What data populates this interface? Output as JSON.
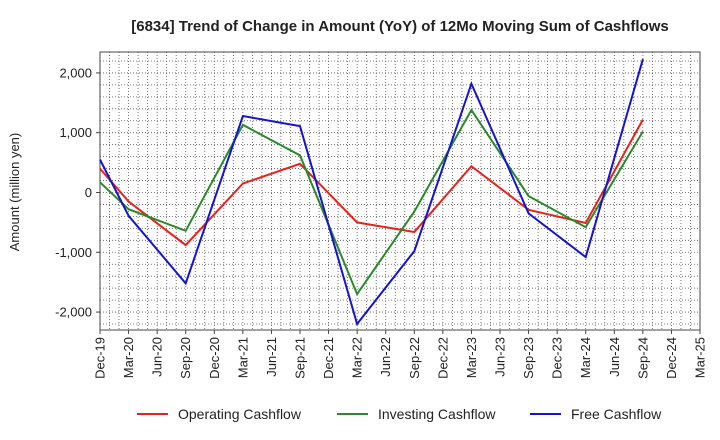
{
  "chart_data": {
    "type": "line",
    "title": "[6834]  Trend of Change in Amount (YoY) of 12Mo Moving Sum of Cashflows",
    "xlabel": "",
    "ylabel": "Amount (million yen)",
    "ylim": [
      -2300,
      2350
    ],
    "yticks": [
      2000,
      1000,
      0,
      -1000,
      -2000
    ],
    "ytick_labels": [
      "2,000",
      "1,000",
      "0",
      "-1,000",
      "-2,000"
    ],
    "grid": true,
    "legend_position": "bottom",
    "categories": [
      "Dec-19",
      "Mar-20",
      "Jun-20",
      "Sep-20",
      "Dec-20",
      "Mar-21",
      "Jun-21",
      "Sep-21",
      "Dec-21",
      "Mar-22",
      "Jun-22",
      "Sep-22",
      "Dec-22",
      "Mar-23",
      "Jun-23",
      "Sep-23",
      "Dec-23",
      "Mar-24",
      "Jun-24",
      "Sep-24",
      "Dec-24",
      "Mar-25"
    ],
    "series": [
      {
        "name": "Operating Cashflow",
        "color": "#e8211d",
        "values": [
          400,
          -150,
          null,
          -880,
          null,
          150,
          null,
          480,
          null,
          -500,
          null,
          -660,
          null,
          440,
          null,
          -290,
          null,
          -510,
          null,
          1220,
          null,
          null
        ]
      },
      {
        "name": "Investing Cashflow",
        "color": "#2a8a2a",
        "values": [
          170,
          -280,
          null,
          -640,
          null,
          1130,
          null,
          620,
          null,
          -1700,
          null,
          -320,
          null,
          1380,
          null,
          -60,
          null,
          -580,
          null,
          1020,
          null,
          null
        ]
      },
      {
        "name": "Free Cashflow",
        "color": "#1414d2",
        "values": [
          550,
          -390,
          null,
          -1520,
          null,
          1280,
          null,
          1110,
          null,
          -2200,
          null,
          -980,
          null,
          1820,
          null,
          -350,
          null,
          -1080,
          null,
          2230,
          null,
          null
        ]
      }
    ]
  }
}
